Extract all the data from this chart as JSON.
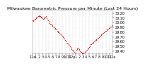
{
  "title": "Milwaukee Barometric Pressure per Minute (Last 24 Hours)",
  "line_color": "#FF0000",
  "bg_color": "#FFFFFF",
  "grid_color": "#AAAAAA",
  "y_min": 29.35,
  "y_max": 30.25,
  "y_ticks": [
    29.4,
    29.5,
    29.6,
    29.7,
    29.8,
    29.9,
    30.0,
    30.1,
    30.2
  ],
  "pressure_values": [
    30.05,
    30.04,
    30.05,
    30.06,
    30.07,
    30.08,
    30.09,
    30.1,
    30.11,
    30.12,
    30.13,
    30.14,
    30.15,
    30.14,
    30.13,
    30.12,
    30.11,
    30.1,
    30.09,
    30.08,
    30.09,
    30.1,
    30.11,
    30.12,
    30.13,
    30.11,
    30.09,
    30.07,
    30.05,
    30.03,
    30.01,
    29.99,
    29.98,
    29.97,
    29.96,
    29.95,
    29.93,
    29.92,
    29.91,
    29.9,
    29.88,
    29.87,
    29.86,
    29.85,
    29.83,
    29.82,
    29.8,
    29.79,
    29.78,
    29.77,
    29.76,
    29.75,
    29.74,
    29.73,
    29.72,
    29.7,
    29.68,
    29.66,
    29.64,
    29.62,
    29.6,
    29.58,
    29.57,
    29.56,
    29.55,
    29.53,
    29.52,
    29.5,
    29.48,
    29.46,
    29.44,
    29.43,
    29.42,
    29.4,
    29.39,
    29.38,
    29.37,
    29.36,
    29.42,
    29.44,
    29.46,
    29.47,
    29.46,
    29.44,
    29.42,
    29.4,
    29.39,
    29.38,
    29.37,
    29.36,
    29.35,
    29.36,
    29.37,
    29.38,
    29.39,
    29.4,
    29.41,
    29.42,
    29.44,
    29.45,
    29.46,
    29.48,
    29.5,
    29.52,
    29.54,
    29.55,
    29.56,
    29.57,
    29.58,
    29.59,
    29.6,
    29.62,
    29.63,
    29.64,
    29.65,
    29.66,
    29.67,
    29.68,
    29.69,
    29.7,
    29.72,
    29.73,
    29.74,
    29.75,
    29.76,
    29.77,
    29.78,
    29.79,
    29.8,
    29.81,
    29.82,
    29.83,
    29.84,
    29.85,
    29.86,
    29.87,
    29.88,
    29.89,
    29.9,
    29.91,
    29.92,
    29.93,
    29.94,
    29.95
  ],
  "x_tick_labels": [
    "12a",
    "1",
    "2",
    "3",
    "4",
    "5",
    "6",
    "7",
    "8",
    "9",
    "10",
    "11",
    "12p",
    "1",
    "2",
    "3",
    "4",
    "5",
    "6",
    "7",
    "8",
    "9",
    "10",
    "11",
    "12a"
  ],
  "marker_size": 0.5,
  "title_fontsize": 4.5,
  "tick_fontsize": 3.5
}
